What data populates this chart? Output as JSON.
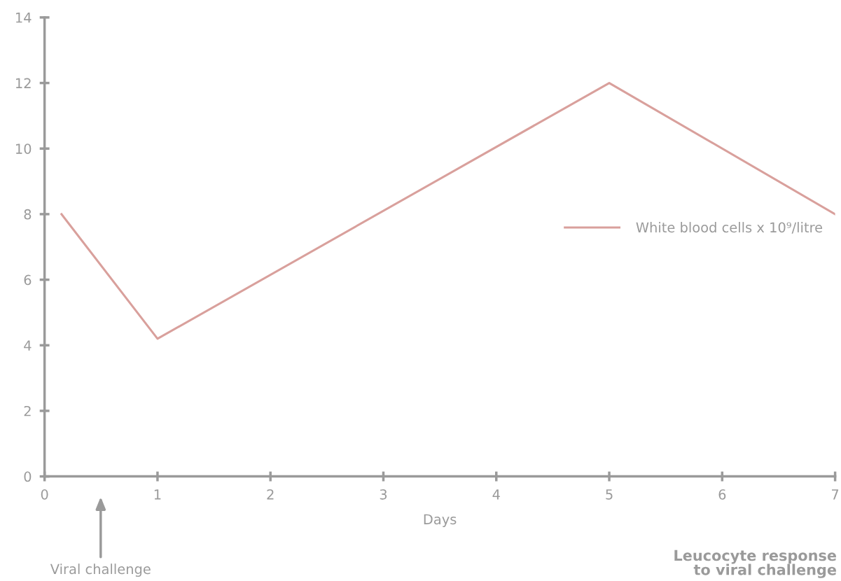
{
  "chart_data": {
    "type": "line",
    "title": "Leucocyte response\nto viral challenge",
    "xlabel": "Days",
    "x": [
      0.15,
      1,
      5,
      7
    ],
    "series": [
      {
        "name": "White blood cells x 10⁹/litre",
        "color": "#d9a09c",
        "values": [
          8,
          4.2,
          12,
          8
        ]
      }
    ],
    "xlim": [
      0,
      7
    ],
    "xticks": [
      0,
      1,
      2,
      3,
      4,
      5,
      6,
      7
    ],
    "ylim": [
      0,
      14
    ],
    "yticks": [
      0,
      2,
      4,
      6,
      8,
      10,
      12,
      14
    ],
    "grid": false,
    "legend": "right",
    "marker": "none",
    "line_style": "solid",
    "annotations": [
      "Viral challenge"
    ]
  }
}
